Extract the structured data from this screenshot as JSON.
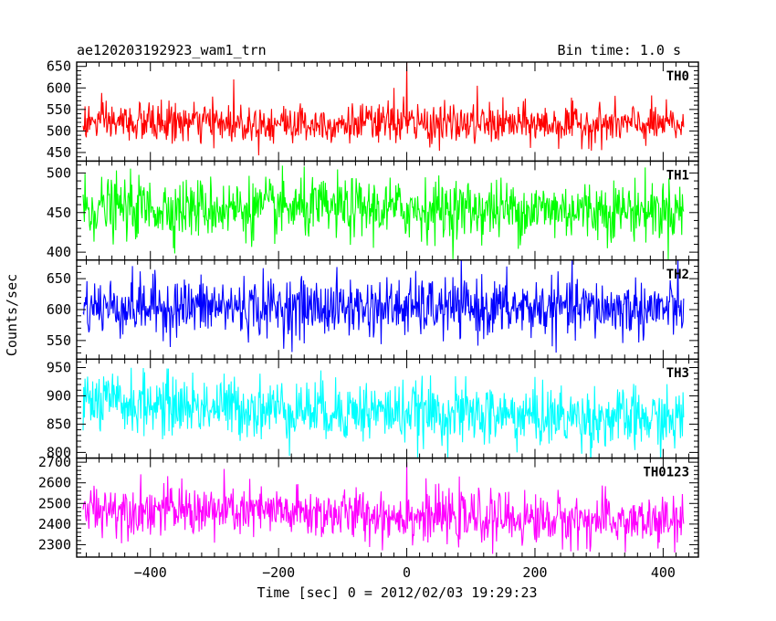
{
  "header": {
    "title": "ae120203192923_wam1_trn",
    "bin_time": "Bin time: 1.0 s"
  },
  "chart_data": {
    "type": "line",
    "xlabel": "Time [sec] 0 = 2012/02/03 19:29:23",
    "ylabel": "Counts/sec",
    "xlim": [
      -515,
      455
    ],
    "x_span": [
      -505,
      432
    ],
    "xticks": [
      -400,
      -200,
      0,
      200,
      400
    ],
    "grid": false,
    "panels": [
      {
        "name": "TH0",
        "color": "#ff0000",
        "ylim": [
          430,
          660
        ],
        "yticks": [
          450,
          500,
          550,
          600,
          650
        ],
        "mean": 520,
        "noise": 23,
        "trend": -6,
        "spikes": [
          {
            "x": -270,
            "y": 620
          },
          {
            "x": -20,
            "y": 600
          },
          {
            "x": -5,
            "y": 580
          },
          {
            "x": 0,
            "y": 660
          },
          {
            "x": 110,
            "y": 605
          }
        ]
      },
      {
        "name": "TH1",
        "color": "#00ff00",
        "ylim": [
          390,
          515
        ],
        "yticks": [
          400,
          450,
          500
        ],
        "mean": 456,
        "noise": 19,
        "trend": -3,
        "spikes": []
      },
      {
        "name": "TH2",
        "color": "#0000ff",
        "ylim": [
          520,
          680
        ],
        "yticks": [
          550,
          600,
          650
        ],
        "mean": 605,
        "noise": 24,
        "trend": -4,
        "spikes": []
      },
      {
        "name": "TH3",
        "color": "#00ffff",
        "ylim": [
          790,
          965
        ],
        "yticks": [
          800,
          850,
          900,
          950
        ],
        "mean": 888,
        "noise": 27,
        "trend": -32,
        "spikes": []
      },
      {
        "name": "TH0123",
        "color": "#ff00ff",
        "ylim": [
          2240,
          2720
        ],
        "yticks": [
          2300,
          2400,
          2500,
          2600,
          2700
        ],
        "mean": 2480,
        "noise": 62,
        "trend": -75,
        "spikes": [
          {
            "x": 0,
            "y": 2700
          },
          {
            "x": -300,
            "y": 2310
          }
        ]
      }
    ]
  }
}
